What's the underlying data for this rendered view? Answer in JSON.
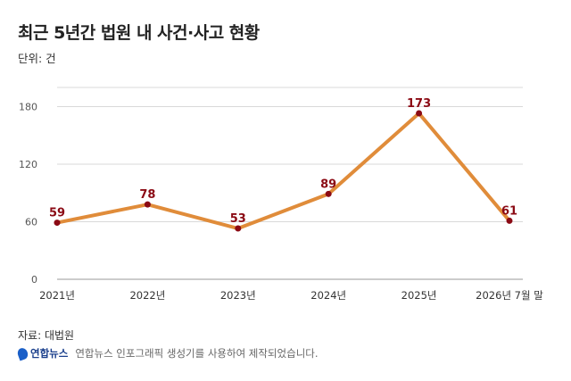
{
  "title": "최근 5년간 법원 내 사건·사고 현황",
  "unit_label": "단위: 건",
  "source": "자료: 대법원",
  "brand": "연합뉴스",
  "credit": "연합뉴스 인포그래픽 생성기를 사용하여 제작되었습니다.",
  "colors": {
    "line": "#e08c3a",
    "marker": "#8b0a14",
    "label": "#8b0a14",
    "grid": "#d9d9d9"
  },
  "chart_data": {
    "type": "line",
    "categories": [
      "2021년",
      "2022년",
      "2023년",
      "2024년",
      "2025년",
      "2026년 7월 말"
    ],
    "values": [
      59,
      78,
      53,
      89,
      173,
      61
    ],
    "ylim": [
      0,
      200
    ],
    "yticks": [
      0,
      60,
      120,
      180
    ],
    "grid": true
  }
}
